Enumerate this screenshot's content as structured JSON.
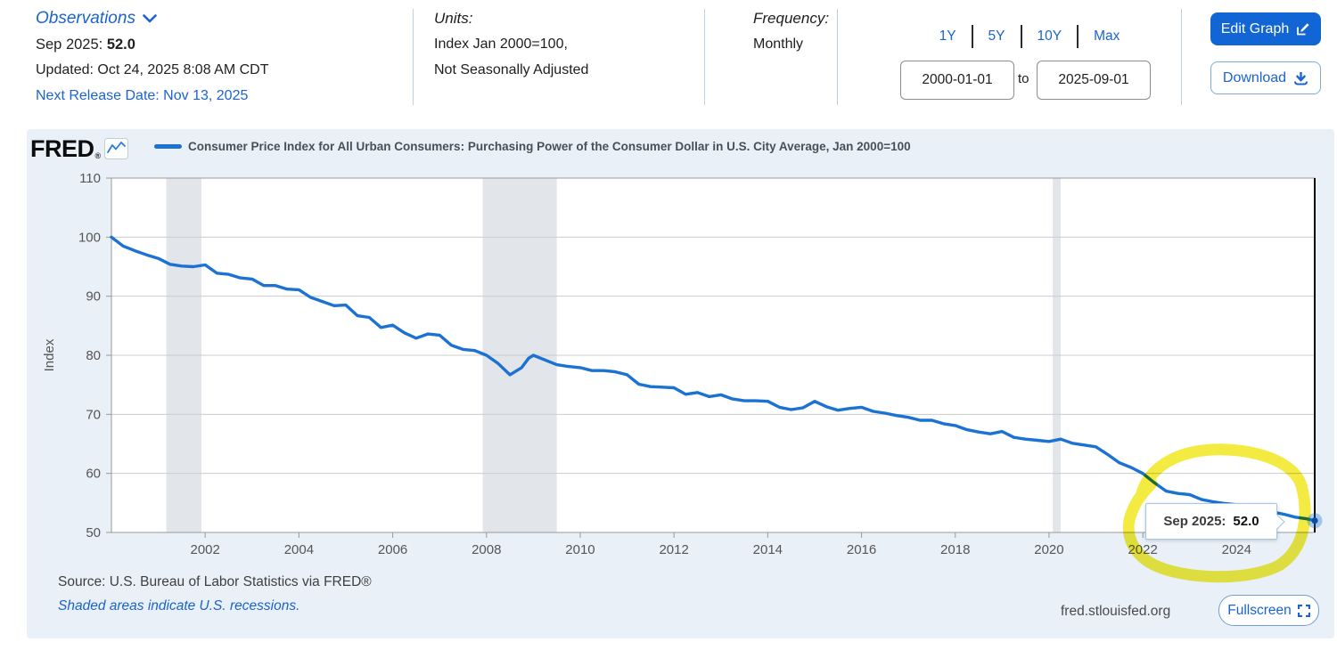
{
  "header": {
    "observations_label": "Observations",
    "current_obs": {
      "date_label": "Sep 2025:",
      "value": "52.0"
    },
    "updated": "Updated: Oct 24, 2025 8:08 AM CDT",
    "next_release": "Next Release Date: Nov 13, 2025",
    "units": {
      "label": "Units:",
      "line1": "Index Jan 2000=100,",
      "line2": "Not Seasonally Adjusted"
    },
    "frequency": {
      "label": "Frequency:",
      "value": "Monthly"
    },
    "ranges": [
      "1Y",
      "5Y",
      "10Y",
      "Max"
    ],
    "date_from": "2000-01-01",
    "to_label": "to",
    "date_to": "2025-09-01",
    "edit_graph_label": "Edit Graph",
    "download_label": "Download"
  },
  "panel": {
    "brand": "FRED",
    "brand_mark": "®",
    "source_line": "Source: U.S. Bureau of Labor Statistics via FRED®",
    "recession_note": "Shaded areas indicate U.S. recessions.",
    "site": "fred.stlouisfed.org",
    "fullscreen_label": "Fullscreen",
    "tooltip": {
      "label": "Sep 2025:",
      "value": "52.0"
    }
  },
  "colors": {
    "line": "#1b72d2",
    "link_blue": "#1b63cf",
    "recession_band": "#e2e5e9",
    "grid": "#cccccc",
    "plot_border": "#999999",
    "highlight_yellow": "#f0e612",
    "crosshair": "#000000",
    "dot_core": "#0d4f9e"
  },
  "chart_data": {
    "type": "line",
    "title": "Consumer Price Index for All Urban Consumers: Purchasing Power of the Consumer Dollar in U.S. City Average, Jan 2000=100",
    "xlabel": "",
    "ylabel": "Index",
    "xlim": [
      2000,
      2025.667
    ],
    "ylim": [
      50,
      110
    ],
    "x_ticks": [
      2002,
      2004,
      2006,
      2008,
      2010,
      2012,
      2014,
      2016,
      2018,
      2020,
      2022,
      2024
    ],
    "y_ticks": [
      50,
      60,
      70,
      80,
      90,
      100,
      110
    ],
    "grid": "horizontal",
    "legend_position": "top",
    "recessions": [
      [
        2001.17,
        2001.92
      ],
      [
        2007.92,
        2009.5
      ],
      [
        2020.08,
        2020.25
      ]
    ],
    "series": [
      {
        "name": "Consumer Price Index for All Urban Consumers: Purchasing Power of the Consumer Dollar in U.S. City Average, Jan 2000=100",
        "points": [
          [
            2000.0,
            100.0
          ],
          [
            2000.25,
            98.5
          ],
          [
            2000.5,
            97.7
          ],
          [
            2000.75,
            97.0
          ],
          [
            2001.0,
            96.4
          ],
          [
            2001.25,
            95.4
          ],
          [
            2001.5,
            95.1
          ],
          [
            2001.75,
            95.0
          ],
          [
            2002.0,
            95.3
          ],
          [
            2002.25,
            93.9
          ],
          [
            2002.5,
            93.7
          ],
          [
            2002.75,
            93.1
          ],
          [
            2003.0,
            92.9
          ],
          [
            2003.25,
            91.8
          ],
          [
            2003.5,
            91.8
          ],
          [
            2003.75,
            91.2
          ],
          [
            2004.0,
            91.1
          ],
          [
            2004.25,
            89.8
          ],
          [
            2004.5,
            89.1
          ],
          [
            2004.75,
            88.4
          ],
          [
            2005.0,
            88.5
          ],
          [
            2005.25,
            86.7
          ],
          [
            2005.5,
            86.4
          ],
          [
            2005.75,
            84.7
          ],
          [
            2006.0,
            85.1
          ],
          [
            2006.25,
            83.8
          ],
          [
            2006.5,
            82.9
          ],
          [
            2006.75,
            83.6
          ],
          [
            2007.0,
            83.4
          ],
          [
            2007.25,
            81.7
          ],
          [
            2007.5,
            81.0
          ],
          [
            2007.75,
            80.8
          ],
          [
            2008.0,
            80.0
          ],
          [
            2008.25,
            78.6
          ],
          [
            2008.5,
            76.7
          ],
          [
            2008.75,
            77.9
          ],
          [
            2008.9,
            79.5
          ],
          [
            2009.0,
            80.0
          ],
          [
            2009.25,
            79.2
          ],
          [
            2009.5,
            78.4
          ],
          [
            2009.75,
            78.1
          ],
          [
            2010.0,
            77.9
          ],
          [
            2010.25,
            77.4
          ],
          [
            2010.5,
            77.4
          ],
          [
            2010.75,
            77.2
          ],
          [
            2011.0,
            76.7
          ],
          [
            2011.25,
            75.1
          ],
          [
            2011.5,
            74.7
          ],
          [
            2011.75,
            74.6
          ],
          [
            2012.0,
            74.5
          ],
          [
            2012.25,
            73.4
          ],
          [
            2012.5,
            73.7
          ],
          [
            2012.75,
            73.0
          ],
          [
            2013.0,
            73.3
          ],
          [
            2013.25,
            72.6
          ],
          [
            2013.5,
            72.3
          ],
          [
            2013.75,
            72.3
          ],
          [
            2014.0,
            72.2
          ],
          [
            2014.25,
            71.2
          ],
          [
            2014.5,
            70.8
          ],
          [
            2014.75,
            71.1
          ],
          [
            2015.0,
            72.2
          ],
          [
            2015.25,
            71.3
          ],
          [
            2015.5,
            70.7
          ],
          [
            2015.75,
            71.0
          ],
          [
            2016.0,
            71.2
          ],
          [
            2016.25,
            70.5
          ],
          [
            2016.5,
            70.2
          ],
          [
            2016.75,
            69.8
          ],
          [
            2017.0,
            69.5
          ],
          [
            2017.25,
            69.0
          ],
          [
            2017.5,
            69.0
          ],
          [
            2017.75,
            68.4
          ],
          [
            2018.0,
            68.1
          ],
          [
            2018.25,
            67.4
          ],
          [
            2018.5,
            67.0
          ],
          [
            2018.75,
            66.7
          ],
          [
            2019.0,
            67.1
          ],
          [
            2019.25,
            66.1
          ],
          [
            2019.5,
            65.8
          ],
          [
            2019.75,
            65.6
          ],
          [
            2020.0,
            65.4
          ],
          [
            2020.25,
            65.8
          ],
          [
            2020.5,
            65.1
          ],
          [
            2020.75,
            64.8
          ],
          [
            2021.0,
            64.5
          ],
          [
            2021.25,
            63.2
          ],
          [
            2021.5,
            61.8
          ],
          [
            2021.75,
            61.0
          ],
          [
            2022.0,
            60.0
          ],
          [
            2022.25,
            58.4
          ],
          [
            2022.5,
            57.0
          ],
          [
            2022.75,
            56.6
          ],
          [
            2023.0,
            56.4
          ],
          [
            2023.25,
            55.6
          ],
          [
            2023.5,
            55.2
          ],
          [
            2023.75,
            54.9
          ],
          [
            2024.0,
            54.7
          ],
          [
            2024.25,
            53.8
          ],
          [
            2024.5,
            53.7
          ],
          [
            2024.75,
            53.5
          ],
          [
            2025.0,
            53.1
          ],
          [
            2025.25,
            52.6
          ],
          [
            2025.5,
            52.3
          ],
          [
            2025.667,
            52.0
          ]
        ]
      }
    ],
    "last_point": {
      "x": 2025.667,
      "y": 52.0,
      "date_label": "Sep 2025",
      "value": 52.0
    }
  }
}
